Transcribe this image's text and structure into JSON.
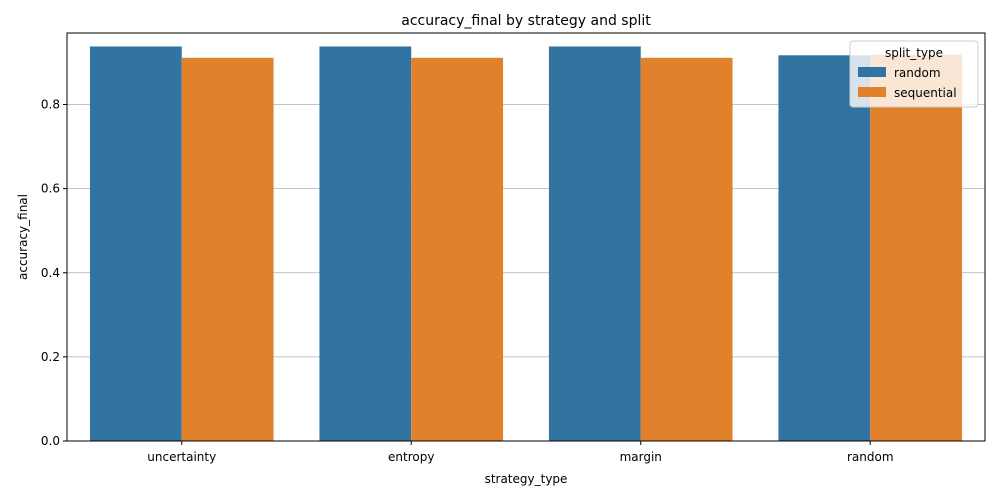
{
  "chart_data": {
    "type": "bar",
    "title": "accuracy_final by strategy and split",
    "xlabel": "strategy_type",
    "ylabel": "accuracy_final",
    "categories": [
      "uncertainty",
      "entropy",
      "margin",
      "random"
    ],
    "series": [
      {
        "name": "random",
        "color": "#3274a1",
        "values": [
          0.938,
          0.938,
          0.938,
          0.917
        ]
      },
      {
        "name": "sequential",
        "color": "#e1812c",
        "values": [
          0.911,
          0.911,
          0.911,
          0.918
        ]
      }
    ],
    "ylim": [
      0,
      0.97
    ],
    "yticks": [
      "0.0",
      "0.2",
      "0.4",
      "0.6",
      "0.8"
    ],
    "grid": "horizontal",
    "legend": {
      "title": "split_type",
      "placement": "top-right"
    }
  }
}
